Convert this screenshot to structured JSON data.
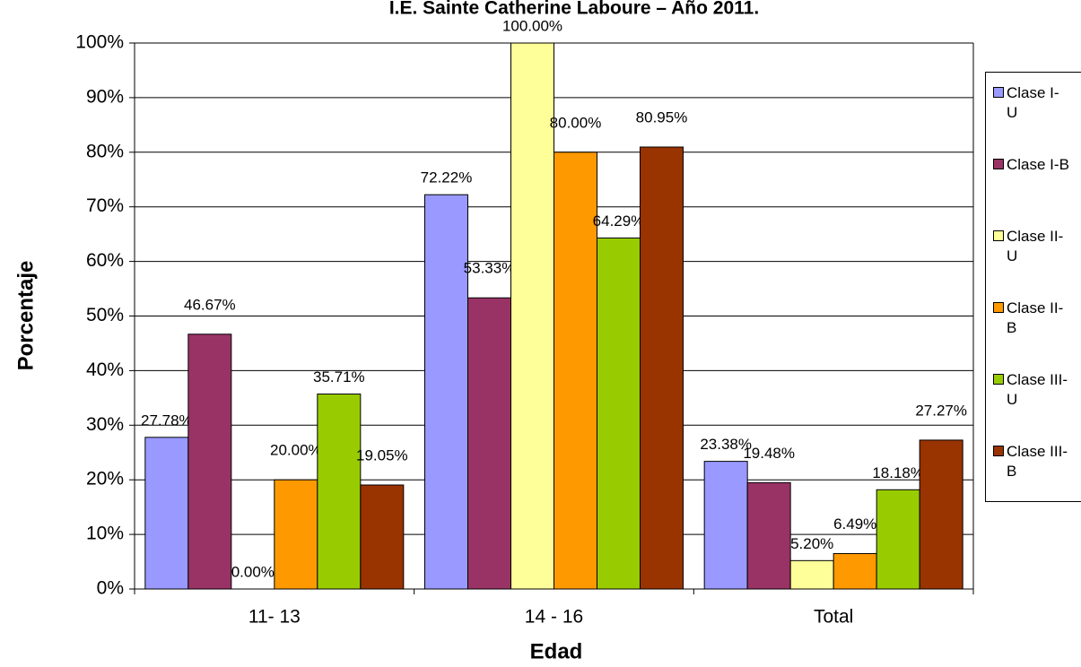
{
  "chart_data": {
    "type": "bar",
    "title": "I.E. Sainte Catherine Laboure – Año 2011.",
    "x_label": "Edad",
    "y_label": "Porcentaje",
    "categories": [
      "11- 13",
      "14 - 16",
      "Total"
    ],
    "series": [
      {
        "name": "Clase I-U",
        "color": "#9999ff",
        "values": [
          27.78,
          72.22,
          23.38
        ],
        "value_labels": [
          "27.78%",
          "72.22%",
          "23.38%"
        ]
      },
      {
        "name": "Clase I-B",
        "color": "#993366",
        "values": [
          46.67,
          53.33,
          19.48
        ],
        "value_labels": [
          "46.67%",
          "53.33%",
          "19.48%"
        ]
      },
      {
        "name": "Clase II-U",
        "color": "#ffff99",
        "values": [
          0,
          100,
          5.2
        ],
        "value_labels": [
          "0.00%",
          "100.00%",
          "5.20%"
        ]
      },
      {
        "name": "Clase II-B",
        "color": "#ff9900",
        "values": [
          20,
          80,
          6.49
        ],
        "value_labels": [
          "20.00%",
          "80.00%",
          "6.49%"
        ]
      },
      {
        "name": "Clase III-U",
        "color": "#99cc00",
        "values": [
          35.71,
          64.29,
          18.18
        ],
        "value_labels": [
          "35.71%",
          "64.29%",
          "18.18%"
        ]
      },
      {
        "name": "Clase III-B",
        "color": "#993300",
        "values": [
          19.05,
          80.95,
          27.27
        ],
        "value_labels": [
          "19.05%",
          "80.95%",
          "27.27%"
        ]
      }
    ],
    "ylim": [
      0,
      100
    ],
    "yticks": [
      {
        "value": 0,
        "label": "0%"
      },
      {
        "value": 10,
        "label": "10%"
      },
      {
        "value": 20,
        "label": "20%"
      },
      {
        "value": 30,
        "label": "30%"
      },
      {
        "value": 40,
        "label": "40%"
      },
      {
        "value": 50,
        "label": "50%"
      },
      {
        "value": 60,
        "label": "60%"
      },
      {
        "value": 70,
        "label": "70%"
      },
      {
        "value": 80,
        "label": "80%"
      },
      {
        "value": 90,
        "label": "90%"
      },
      {
        "value": 100,
        "label": "100%"
      }
    ],
    "grid": true,
    "legend": "right"
  }
}
